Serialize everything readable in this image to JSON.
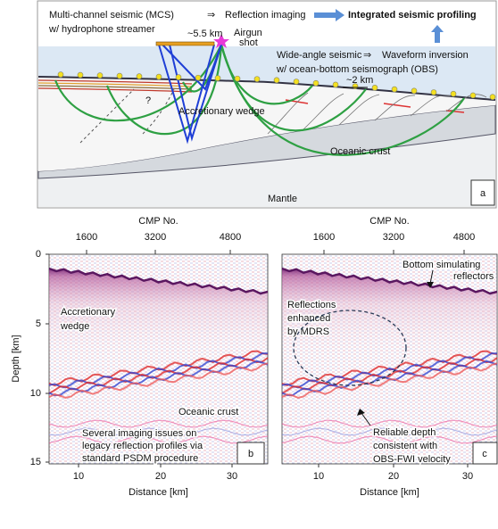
{
  "panel_a": {
    "label": "a",
    "mcs": "Multi-channel seismic (MCS)",
    "mcs_sub": "w/ hydrophone streamer",
    "reflection": "Reflection imaging",
    "integrated": "Integrated seismic profiling",
    "wide": "Wide-angle seismic",
    "wide_sub": "w/ ocean-bottom seismograph (OBS)",
    "waveform": "Waveform inversion",
    "streamer_length": "~5.5 km",
    "airgun": "Airgun",
    "shot": "shot",
    "obs_spacing": "~2 km",
    "question": "?",
    "wedge": "Accretionary wedge",
    "crust": "Oceanic crust",
    "mantle": "Mantle"
  },
  "panel_b": {
    "label": "b",
    "top_label": "CMP No.",
    "top_ticks": [
      "1600",
      "3200",
      "4800"
    ],
    "y_label": "Depth [km]",
    "y_ticks": [
      "0",
      "5",
      "10",
      "15"
    ],
    "x_label": "Distance [km]",
    "x_ticks": [
      "10",
      "20",
      "30"
    ],
    "wedge": [
      "Accretionary",
      "wedge"
    ],
    "crust": "Oceanic crust",
    "note": [
      "Several imaging issues on",
      "legacy reflection profiles via",
      "standard PSDM procedure"
    ]
  },
  "panel_c": {
    "label": "c",
    "top_label": "CMP No.",
    "top_ticks": [
      "1600",
      "3200",
      "4800"
    ],
    "x_label": "Distance [km]",
    "x_ticks": [
      "10",
      "20",
      "30"
    ],
    "bsr": [
      "Bottom simulating",
      "reflectors"
    ],
    "mdrs": [
      "Reflections",
      "enhanced",
      "by MDRS"
    ],
    "reliable": [
      "Reliable depth",
      "consistent with",
      "OBS-FWI velocity"
    ]
  }
}
